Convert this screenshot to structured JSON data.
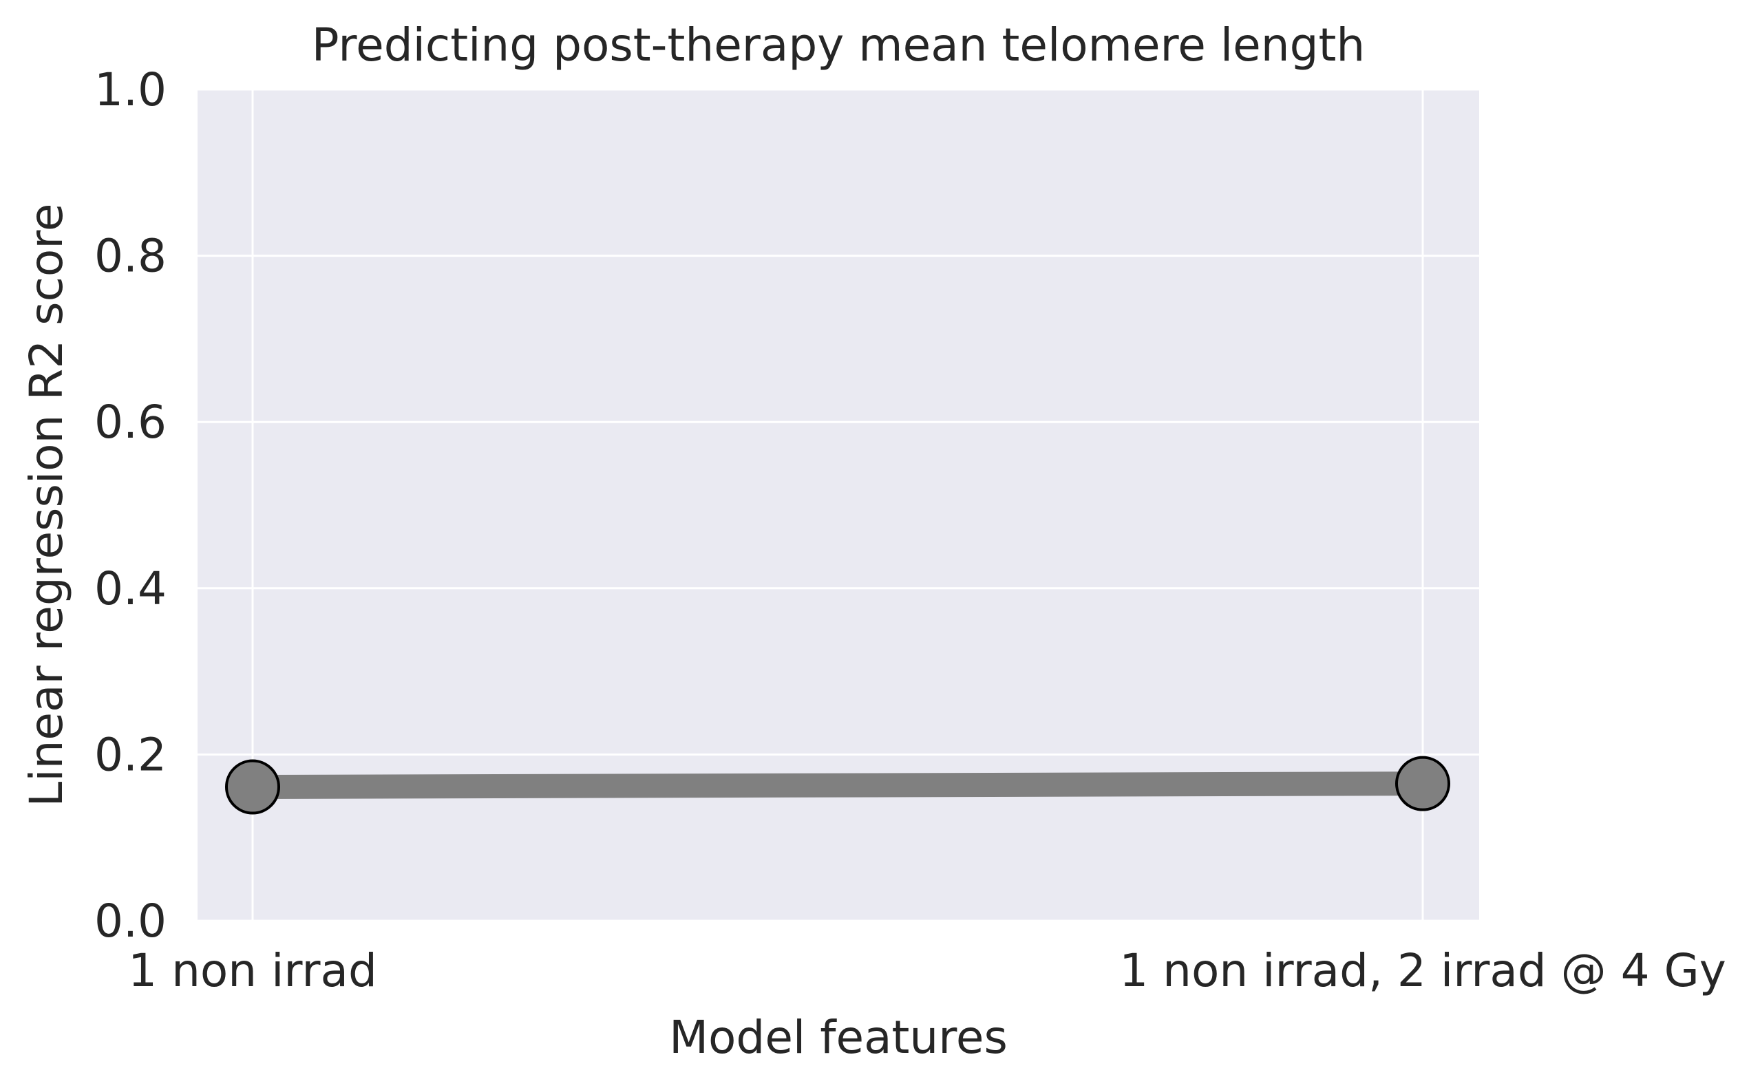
{
  "chart_data": {
    "type": "line",
    "title": "Predicting post-therapy mean telomere length",
    "xlabel": "Model features",
    "ylabel": "Linear regression R2 score",
    "categories": [
      "1 non irrad",
      "1 non irrad, 2 irrad @ 4 Gy"
    ],
    "series": [
      {
        "values": [
          0.161,
          0.165
        ]
      }
    ],
    "ylim": [
      0,
      1.0
    ],
    "yticks": [
      "0.0",
      "0.2",
      "0.4",
      "0.6",
      "0.8",
      "1.0"
    ],
    "grid": true,
    "colors": {
      "background": "#eaeaf2",
      "grid": "#ffffff",
      "line": "#808080",
      "marker_fill": "#808080",
      "marker_edge": "#000000",
      "text": "#262626"
    }
  }
}
